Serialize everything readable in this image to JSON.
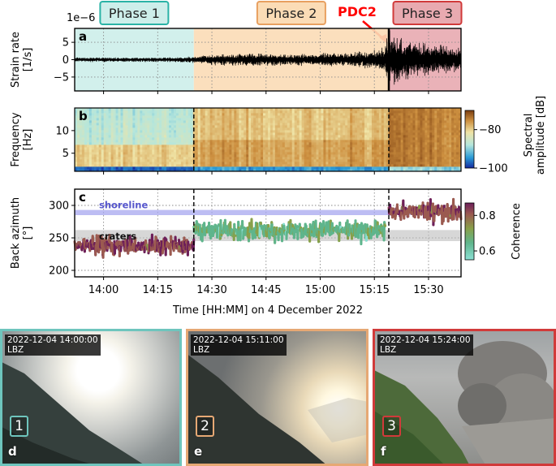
{
  "colors": {
    "phase1": "#2ab3a6",
    "phase1_fill": "#cdeeea",
    "phase2": "#e8a060",
    "phase2_fill": "#fbdcb6",
    "phase3": "#d13a3a",
    "phase3_fill": "#e8aab0",
    "pdc": "#ff0000",
    "shoreline": "#a7a7ef",
    "craters": "#bdbdbd"
  },
  "phases": [
    {
      "label": "Phase 1",
      "start": "13:52",
      "end": "14:25"
    },
    {
      "label": "Phase 2",
      "start": "14:25",
      "end": "15:19"
    },
    {
      "label": "Phase 3",
      "start": "15:19",
      "end": "15:39"
    }
  ],
  "pdc_label": "PDC2",
  "pdc_time": "15:19",
  "panels": [
    {
      "letter": "a",
      "chart_data": {
        "type": "line",
        "ylabel_lines": [
          "Strain rate",
          "[1/s]"
        ],
        "exponent_label": "1e−6",
        "ylim": [
          -9,
          9
        ],
        "yticks": [
          -5,
          0,
          5
        ],
        "envelope": {
          "times": [
            "13:52",
            "14:00",
            "14:10",
            "14:20",
            "14:25",
            "14:30",
            "14:40",
            "14:50",
            "15:00",
            "15:10",
            "15:15",
            "15:18",
            "15:19",
            "15:22",
            "15:26",
            "15:30",
            "15:35",
            "15:39"
          ],
          "amplitude": [
            0.7,
            0.7,
            0.7,
            0.8,
            1.0,
            1.6,
            2.0,
            1.8,
            2.0,
            2.4,
            3.0,
            4.5,
            9.0,
            7.5,
            6.0,
            5.0,
            4.2,
            3.8
          ]
        }
      }
    },
    {
      "letter": "b",
      "chart_data": {
        "type": "heatmap",
        "ylabel_lines": [
          "Frequency",
          "[Hz]"
        ],
        "ylim": [
          1,
          15
        ],
        "yticks": [
          5,
          10
        ],
        "colorbar": {
          "label_lines": [
            "Spectral",
            "amplitude [dB]"
          ],
          "ticks": [
            -80,
            -100
          ],
          "range": [
            -100,
            -70
          ]
        }
      }
    },
    {
      "letter": "c",
      "chart_data": {
        "type": "scatter",
        "ylabel_lines": [
          "Back azimuth",
          "[°]"
        ],
        "ylim": [
          190,
          325
        ],
        "yticks": [
          200,
          250,
          300
        ],
        "shoreline_label": "shoreline",
        "shoreline_band": [
          285,
          293
        ],
        "craters_label": "craters",
        "craters_band": [
          245,
          262
        ],
        "colorbar": {
          "label": "Coherence",
          "ticks": [
            0.8,
            0.6
          ],
          "range": [
            0.55,
            0.87
          ]
        },
        "segments": [
          {
            "start": "13:52",
            "end": "14:25",
            "mean": 238,
            "spread": 15,
            "coh": 0.8
          },
          {
            "start": "14:25",
            "end": "15:18",
            "mean": 262,
            "spread": 15,
            "coh": 0.66
          },
          {
            "start": "15:19",
            "end": "15:39",
            "mean": 290,
            "spread": 16,
            "coh": 0.79
          }
        ]
      }
    }
  ],
  "x_axis": {
    "label": "Time [HH:MM] on 4 December 2022",
    "range": [
      "13:52",
      "15:39"
    ],
    "ticks": [
      "14:00",
      "14:15",
      "14:30",
      "14:45",
      "15:00",
      "15:15",
      "15:30"
    ]
  },
  "photos": [
    {
      "timestamp": "2022-12-04 14:00:00",
      "station": "LBZ",
      "number": "1",
      "letter": "d"
    },
    {
      "timestamp": "2022-12-04 15:11:00",
      "station": "LBZ",
      "number": "2",
      "letter": "e"
    },
    {
      "timestamp": "2022-12-04 15:24:00",
      "station": "LBZ",
      "number": "3",
      "letter": "f"
    }
  ]
}
